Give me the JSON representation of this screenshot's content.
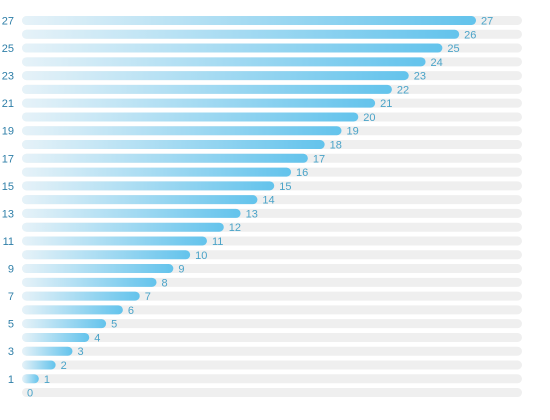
{
  "chart_data": {
    "type": "bar",
    "orientation": "horizontal",
    "categories": [
      "27",
      "26",
      "25",
      "24",
      "23",
      "22",
      "21",
      "20",
      "19",
      "18",
      "17",
      "16",
      "15",
      "14",
      "13",
      "12",
      "11",
      "10",
      "9",
      "8",
      "7",
      "6",
      "5",
      "4",
      "3",
      "2",
      "1",
      "0"
    ],
    "values": [
      27,
      26,
      25,
      24,
      23,
      22,
      21,
      20,
      19,
      18,
      17,
      16,
      15,
      14,
      13,
      12,
      11,
      10,
      9,
      8,
      7,
      6,
      5,
      4,
      3,
      2,
      1,
      0
    ],
    "y_tick_labels": [
      "27",
      "25",
      "23",
      "21",
      "19",
      "17",
      "15",
      "13",
      "11",
      "9",
      "7",
      "5",
      "3",
      "1"
    ],
    "value_labels": [
      "27",
      "26",
      "25",
      "24",
      "23",
      "22",
      "21",
      "20",
      "19",
      "18",
      "17",
      "16",
      "15",
      "14",
      "13",
      "12",
      "11",
      "10",
      "9",
      "8",
      "7",
      "6",
      "5",
      "4",
      "3",
      "2",
      "1",
      "0"
    ],
    "xlim": [
      0,
      30
    ],
    "title": "",
    "xlabel": "",
    "ylabel": "",
    "grid": false,
    "legend": "none",
    "colors": {
      "bar_start": "#e6f2f8",
      "bar_end": "#63c3ec",
      "track": "#efefef",
      "value_label": "#4aa3c8",
      "tick_label": "#2f7fa8"
    }
  }
}
